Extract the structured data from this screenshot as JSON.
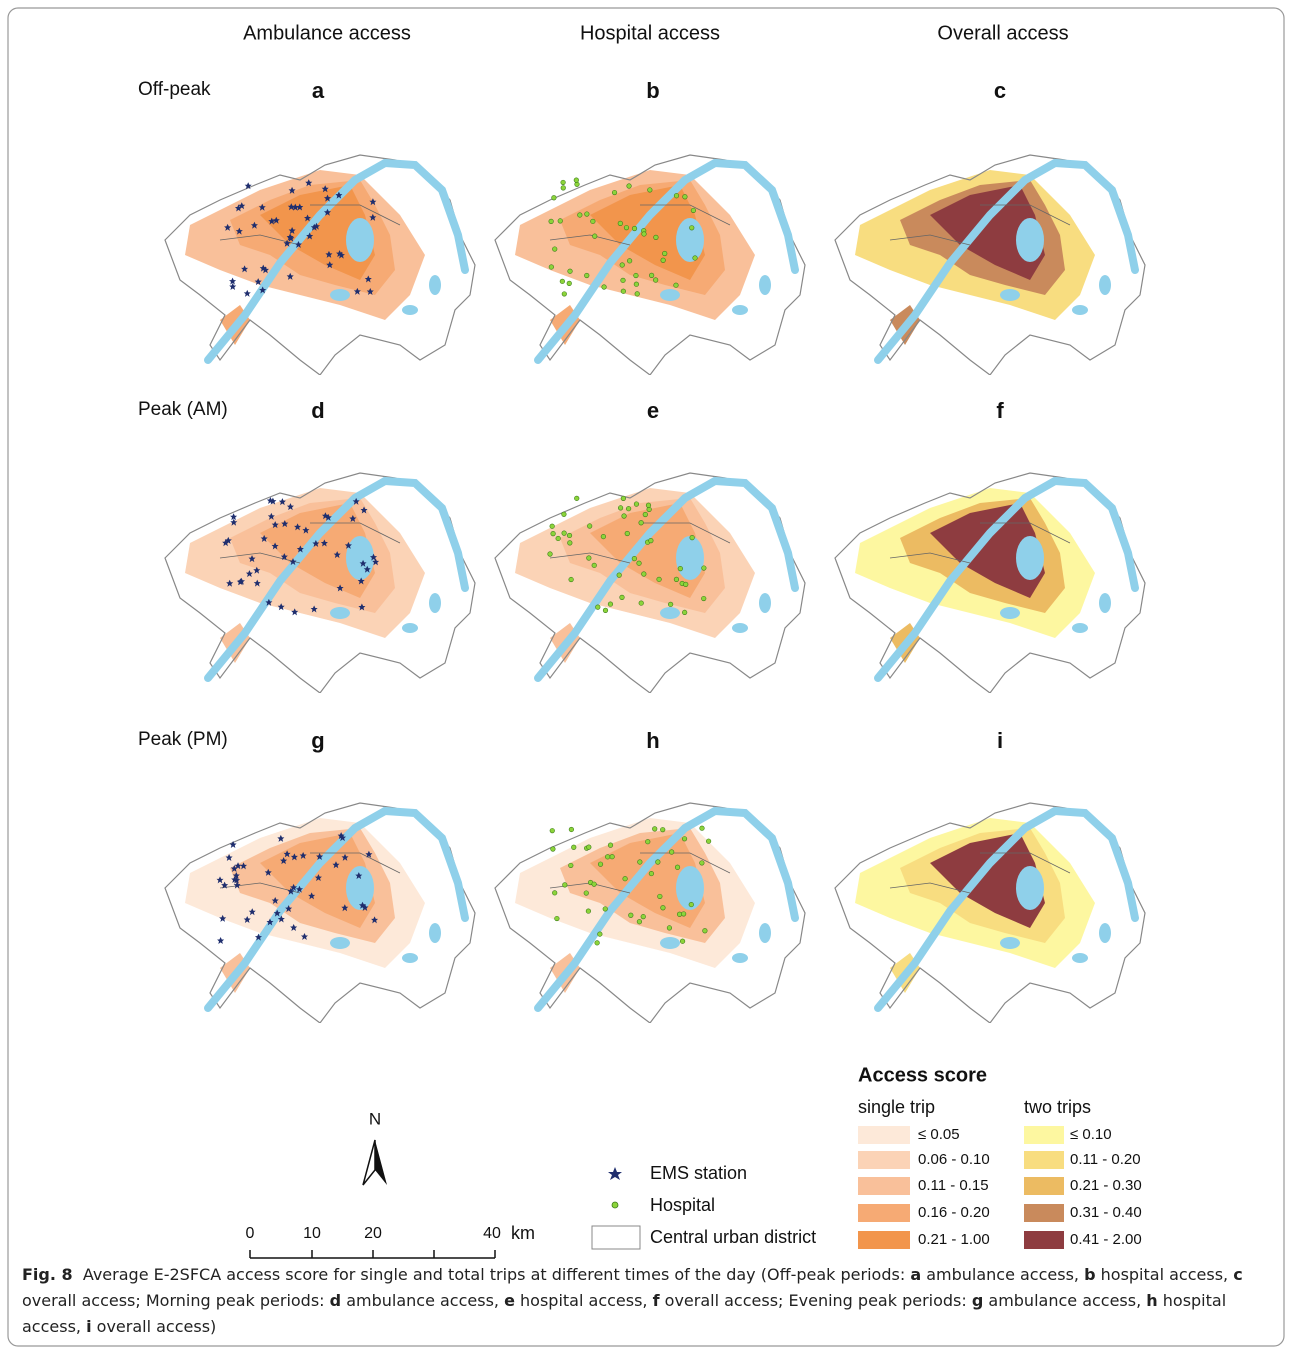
{
  "column_headers": [
    "Ambulance access",
    "Hospital access",
    "Overall access"
  ],
  "row_labels": [
    "Off-peak",
    "Peak (AM)",
    "Peak (PM)"
  ],
  "panel_letters": [
    "a",
    "b",
    "c",
    "d",
    "e",
    "f",
    "g",
    "h",
    "i"
  ],
  "north": "N",
  "scale_bar": {
    "ticks": [
      "0",
      "10",
      "20",
      "40"
    ],
    "unit": "km"
  },
  "point_legend": [
    "EMS station",
    "Hospital",
    "Central urban district"
  ],
  "legend": {
    "title": "Access score",
    "single_trip": {
      "title": "single trip",
      "items": [
        {
          "label": "≤ 0.05",
          "color": "#fde9d9"
        },
        {
          "label": "0.06 - 0.10",
          "color": "#fbd3b6"
        },
        {
          "label": "0.11 - 0.15",
          "color": "#f9c09a"
        },
        {
          "label": "0.16 - 0.20",
          "color": "#f6aa74"
        },
        {
          "label": "0.21 - 1.00",
          "color": "#f2954c"
        }
      ]
    },
    "two_trips": {
      "title": "two trips",
      "items": [
        {
          "label": "≤ 0.10",
          "color": "#fdf7a0"
        },
        {
          "label": "0.11 - 0.20",
          "color": "#f8dd80"
        },
        {
          "label": "0.21 - 0.30",
          "color": "#ecbb62"
        },
        {
          "label": "0.31 - 0.40",
          "color": "#c98a5c"
        },
        {
          "label": "0.41 - 2.00",
          "color": "#8e3c40"
        }
      ]
    }
  },
  "caption": {
    "label": "Fig. 8",
    "parts": [
      "Average E-2SFCA access score for single and total trips at different times of the day (Off-peak periods: ",
      "a",
      " ambulance access, ",
      "b",
      " hospital access, ",
      "c",
      " overall access; Morning peak periods: ",
      "d",
      " ambulance access, ",
      "e",
      " hospital access, ",
      "f",
      " overall access; Evening peak periods: ",
      "g",
      " ambulance access, ",
      "h",
      " hospital access, ",
      "i",
      " overall access)"
    ]
  }
}
